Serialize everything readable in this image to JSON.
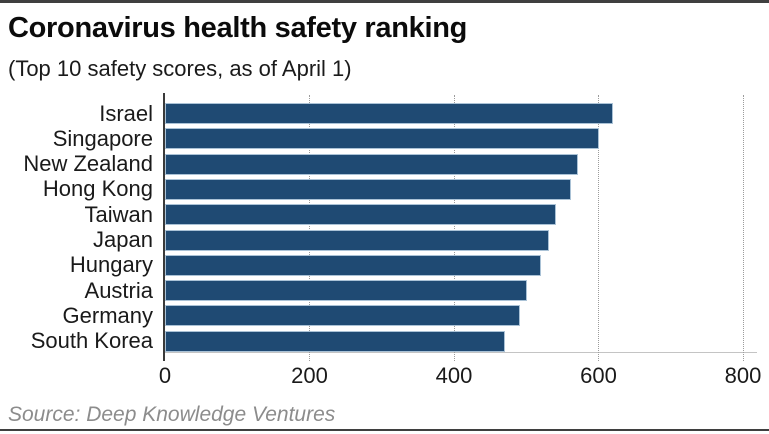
{
  "header": {
    "title": "Coronavirus health safety ranking",
    "subtitle": "(Top 10 safety scores, as of April 1)"
  },
  "footer": {
    "source": "Source: Deep Knowledge Ventures"
  },
  "colors": {
    "bar_fill": "#1f4a73",
    "bar_border": "#aac2d6",
    "gridline": "#9b9b9b",
    "axis_line": "#3a3a3a",
    "frame_rule": "#3f3f3f",
    "source_text": "#8c8c8c"
  },
  "chart_data": {
    "type": "bar",
    "orientation": "horizontal",
    "title": "Coronavirus health safety ranking",
    "subtitle": "(Top 10 safety scores, as of April 1)",
    "categories": [
      "Israel",
      "Singapore",
      "New Zealand",
      "Hong Kong",
      "Taiwan",
      "Japan",
      "Hungary",
      "Austria",
      "Germany",
      "South Korea"
    ],
    "values": [
      620,
      600,
      571,
      562,
      541,
      532,
      521,
      501,
      491,
      471
    ],
    "xlabel": "",
    "ylabel": "",
    "xlim": [
      0,
      800
    ],
    "x_ticks": [
      0,
      200,
      400,
      600,
      800
    ],
    "grid": "dotted-vertical",
    "legend": "none",
    "source": "Source: Deep Knowledge Ventures"
  }
}
